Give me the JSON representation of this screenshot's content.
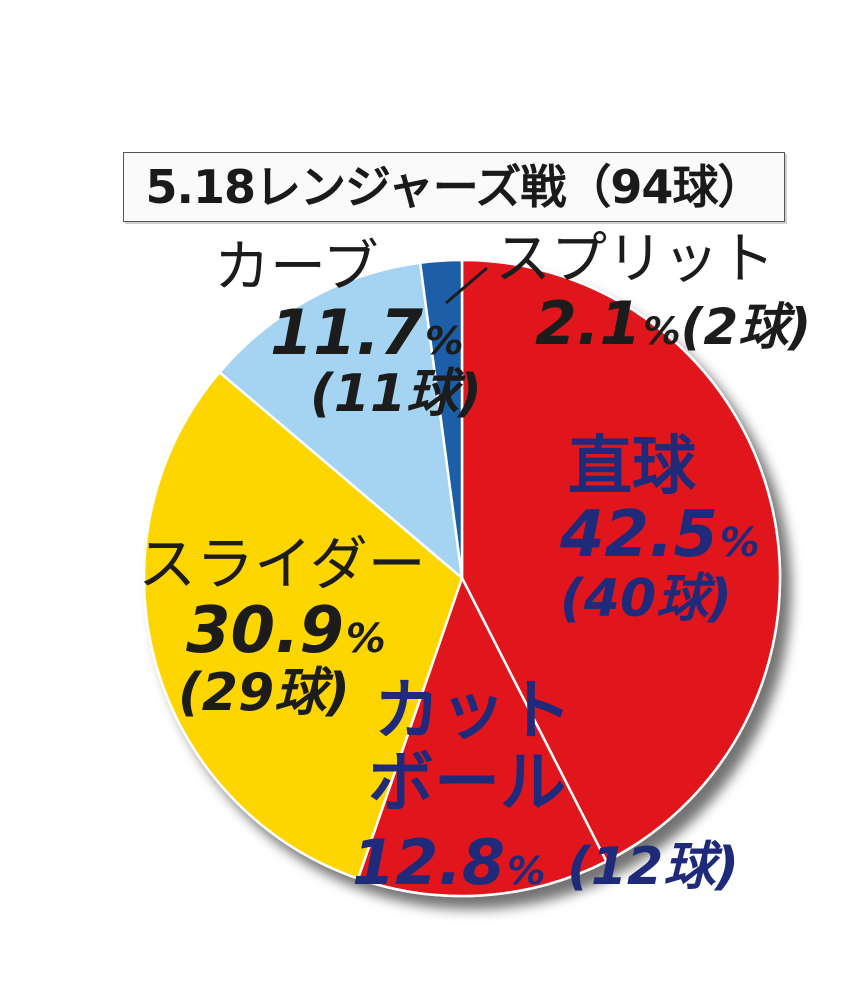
{
  "chart_data": {
    "type": "pie",
    "title": "5.18レンジャーズ戦（94球）",
    "slices": [
      {
        "label": "直球",
        "value": 42.5,
        "pct_unit": "%",
        "count": "(40球)",
        "color": "#e0121c"
      },
      {
        "label": "カットボール",
        "label_lines": [
          "カット",
          "ボール"
        ],
        "value": 12.8,
        "pct_unit": "%",
        "count": "(12球)",
        "color": "#e0121c"
      },
      {
        "label": "スライダー",
        "value": 30.9,
        "pct_unit": "%",
        "count": "(29球)",
        "color": "#fdd600"
      },
      {
        "label": "カーブ",
        "value": 11.7,
        "pct_unit": "%",
        "count": "(11球)",
        "color": "#a5d4f3"
      },
      {
        "label": "スプリット",
        "value": 2.1,
        "pct_unit": "%",
        "count": "(2球)",
        "color": "#1a5fa8"
      }
    ]
  }
}
